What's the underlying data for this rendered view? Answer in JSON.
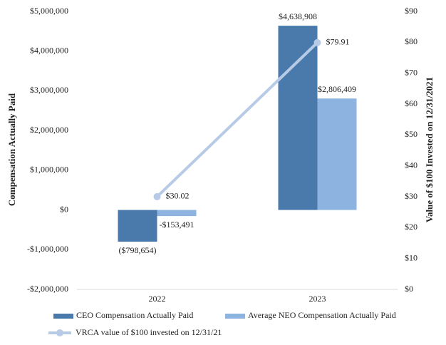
{
  "chart_data": {
    "type": "bar",
    "ylabel": "Compensation Actually Paid",
    "y2label": "Value of $100 Invested on 12/31/2021",
    "categories": [
      "2022",
      "2023"
    ],
    "series": [
      {
        "name": "CEO Compensation Actually Paid",
        "color": "#4a7aab",
        "values": [
          -798654,
          4638908
        ],
        "value_labels": [
          "($798,654)",
          "$4,638,908"
        ]
      },
      {
        "name": "Average NEO Compensation Actually Paid",
        "color": "#8db3e0",
        "values": [
          -153491,
          2806409
        ],
        "value_labels": [
          "-$153,491",
          "$2,806,409"
        ]
      },
      {
        "name": "VRCA value of $100 invested on 12/31/21",
        "color": "#b7cbe6",
        "type": "line",
        "axis": "y2",
        "values": [
          30.02,
          79.91
        ],
        "value_labels": [
          "$30.02",
          "$79.91"
        ]
      }
    ],
    "ylim": [
      -2000000,
      5000000
    ],
    "yticks": [
      {
        "value": -2000000,
        "label": "-$2,000,000"
      },
      {
        "value": -1000000,
        "label": "-$1,000,000"
      },
      {
        "value": 0,
        "label": "$0"
      },
      {
        "value": 1000000,
        "label": "$1,000,000"
      },
      {
        "value": 2000000,
        "label": "$2,000,000"
      },
      {
        "value": 3000000,
        "label": "$3,000,000"
      },
      {
        "value": 4000000,
        "label": "$4,000,000"
      },
      {
        "value": 5000000,
        "label": "$5,000,000"
      }
    ],
    "y2lim": [
      0,
      90
    ],
    "y2ticks": [
      {
        "value": 0,
        "label": "$0"
      },
      {
        "value": 10,
        "label": "$10"
      },
      {
        "value": 20,
        "label": "$20"
      },
      {
        "value": 30,
        "label": "$30"
      },
      {
        "value": 40,
        "label": "$40"
      },
      {
        "value": 50,
        "label": "$50"
      },
      {
        "value": 60,
        "label": "$60"
      },
      {
        "value": 70,
        "label": "$70"
      },
      {
        "value": 80,
        "label": "$80"
      },
      {
        "value": 90,
        "label": "$90"
      }
    ],
    "legend": "bottom"
  }
}
